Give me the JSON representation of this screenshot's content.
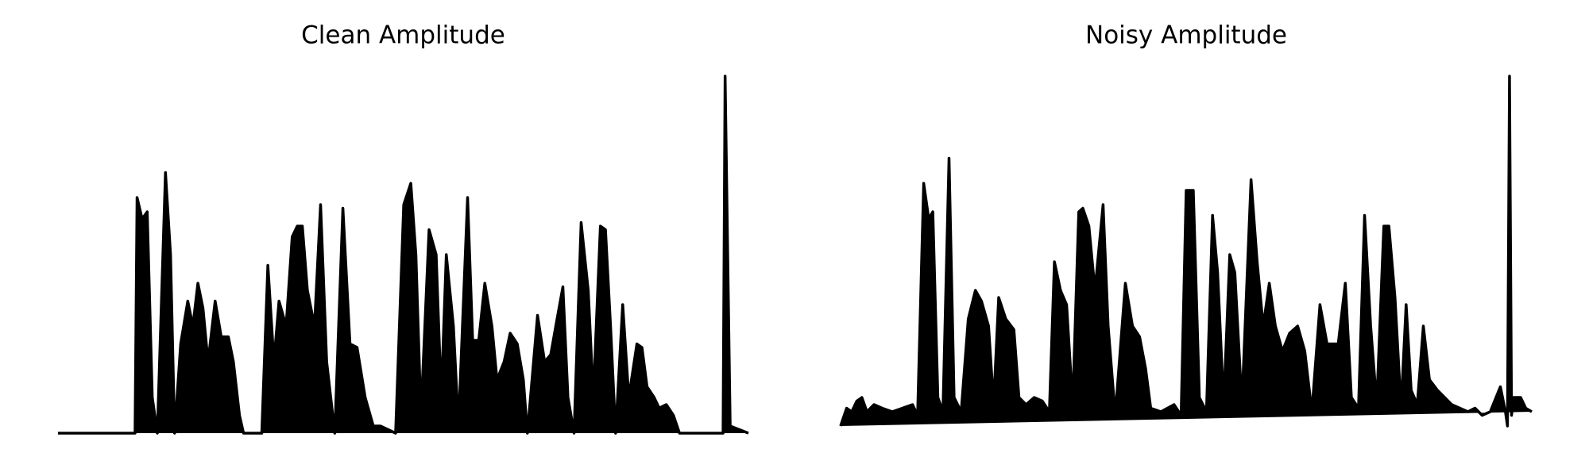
{
  "chart_data": [
    {
      "type": "area",
      "title": "Clean Amplitude",
      "color": "#000000",
      "xlim": [
        0,
        681
      ],
      "ylim": [
        0,
        1
      ],
      "x": [
        0,
        76,
        78,
        83,
        88,
        93,
        98,
        106,
        111,
        115,
        121,
        128,
        133,
        138,
        143,
        148,
        155,
        161,
        168,
        173,
        179,
        183,
        201,
        207,
        213,
        218,
        225,
        231,
        236,
        241,
        246,
        253,
        259,
        265,
        273,
        281,
        288,
        295,
        303,
        311,
        318,
        333,
        341,
        348,
        353,
        358,
        366,
        373,
        378,
        383,
        390,
        395,
        404,
        409,
        415,
        421,
        428,
        433,
        440,
        446,
        453,
        459,
        463,
        473,
        480,
        486,
        491,
        498,
        503,
        509,
        516,
        523,
        528,
        535,
        540,
        545,
        550,
        557,
        563,
        571,
        576,
        581,
        588,
        593,
        600,
        607,
        613,
        643,
        656,
        658,
        663,
        681
      ],
      "values": [
        0,
        0,
        0.66,
        0.6,
        0.62,
        0.1,
        0,
        0.73,
        0.5,
        0,
        0.25,
        0.37,
        0.3,
        0.42,
        0.35,
        0.2,
        0.37,
        0.27,
        0.27,
        0.2,
        0.05,
        0,
        0,
        0.47,
        0.2,
        0.37,
        0.3,
        0.55,
        0.58,
        0.58,
        0.4,
        0.3,
        0.64,
        0.2,
        0,
        0.63,
        0.25,
        0.24,
        0.1,
        0.02,
        0.02,
        0,
        0.64,
        0.7,
        0.5,
        0.05,
        0.57,
        0.5,
        0.1,
        0.5,
        0.3,
        0.02,
        0.66,
        0.26,
        0.26,
        0.42,
        0.3,
        0.15,
        0.2,
        0.28,
        0.25,
        0.15,
        0,
        0.33,
        0.2,
        0.22,
        0.3,
        0.41,
        0.1,
        0,
        0.59,
        0.4,
        0.1,
        0.58,
        0.57,
        0.3,
        0,
        0.36,
        0.1,
        0.25,
        0.24,
        0.13,
        0.1,
        0.07,
        0.08,
        0.05,
        0,
        0,
        0,
        1.0,
        0.02,
        0
      ]
    },
    {
      "type": "area",
      "title": "Noisy Amplitude",
      "color": "#000000",
      "xlim": [
        0,
        682
      ],
      "ylim": [
        0,
        1
      ],
      "x": [
        0,
        6,
        11,
        16,
        21,
        26,
        33,
        41,
        51,
        61,
        71,
        76,
        82,
        87,
        91,
        96,
        101,
        107,
        112,
        119,
        126,
        133,
        139,
        146,
        151,
        156,
        163,
        171,
        176,
        183,
        191,
        199,
        206,
        211,
        217,
        223,
        229,
        235,
        239,
        245,
        251,
        259,
        264,
        271,
        281,
        288,
        295,
        301,
        306,
        316,
        329,
        336,
        341,
        348,
        354,
        361,
        367,
        372,
        378,
        384,
        389,
        396,
        405,
        411,
        417,
        423,
        429,
        436,
        443,
        451,
        458,
        465,
        473,
        480,
        486,
        491,
        498,
        504,
        511,
        517,
        523,
        529,
        536,
        541,
        547,
        553,
        558,
        563,
        569,
        575,
        581,
        589,
        596,
        603,
        611,
        619,
        626,
        633,
        641,
        651,
        656,
        658,
        660,
        662,
        664,
        671,
        676,
        682
      ],
      "values": [
        0.02,
        0.07,
        0.06,
        0.09,
        0.1,
        0.06,
        0.08,
        0.07,
        0.06,
        0.07,
        0.08,
        0.05,
        0.7,
        0.6,
        0.62,
        0.1,
        0.06,
        0.77,
        0.1,
        0.06,
        0.32,
        0.4,
        0.37,
        0.3,
        0.08,
        0.38,
        0.32,
        0.29,
        0.1,
        0.08,
        0.1,
        0.09,
        0.06,
        0.48,
        0.4,
        0.36,
        0.08,
        0.62,
        0.63,
        0.58,
        0.4,
        0.64,
        0.3,
        0.05,
        0.42,
        0.3,
        0.27,
        0.18,
        0.07,
        0.06,
        0.08,
        0.05,
        0.68,
        0.68,
        0.1,
        0.06,
        0.61,
        0.45,
        0.08,
        0.5,
        0.45,
        0.08,
        0.71,
        0.48,
        0.3,
        0.42,
        0.3,
        0.23,
        0.28,
        0.3,
        0.23,
        0.06,
        0.36,
        0.25,
        0.25,
        0.25,
        0.42,
        0.1,
        0.07,
        0.61,
        0.3,
        0.08,
        0.58,
        0.58,
        0.38,
        0.07,
        0.36,
        0.12,
        0.08,
        0.3,
        0.15,
        0.12,
        0.1,
        0.08,
        0.07,
        0.06,
        0.07,
        0.05,
        0.06,
        0.13,
        0.06,
        0.02,
        1.0,
        0.05,
        0.1,
        0.1,
        0.07,
        0.06
      ]
    }
  ]
}
